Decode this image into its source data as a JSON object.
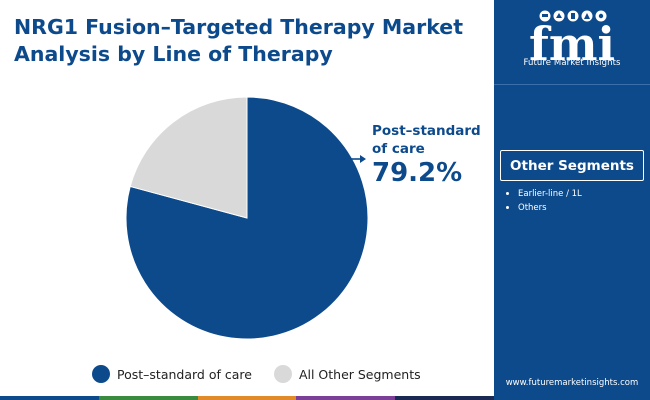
{
  "title": {
    "line1": "NRG1 Fusion–Targeted Therapy Market",
    "line2": "Analysis by Line of Therapy"
  },
  "brand": {
    "logo_text": "fmi",
    "caption": "Future Market Insights",
    "website": "www.futuremarketinsights.com"
  },
  "other_segments": {
    "header": "Other Segments",
    "items": [
      "Earlier-line / 1L",
      "Others"
    ]
  },
  "callout": {
    "label": "Post–standard of care",
    "value": "79.2%"
  },
  "colors": {
    "primary": "#0d4a8c",
    "secondary": "#d9d9d9",
    "footer_stripes": [
      "#0d4a8c",
      "#3a8a3f",
      "#e08a2a",
      "#7b3f98",
      "#1b2a52"
    ]
  },
  "chart_data": {
    "type": "pie",
    "title": "NRG1 Fusion–Targeted Therapy Market Analysis by Line of Therapy",
    "slices": [
      {
        "label": "Post–standard of care",
        "value": 79.2,
        "color": "#0d4a8c"
      },
      {
        "label": "All Other Segments",
        "value": 20.8,
        "color": "#d9d9d9"
      }
    ],
    "legend_position": "bottom"
  }
}
